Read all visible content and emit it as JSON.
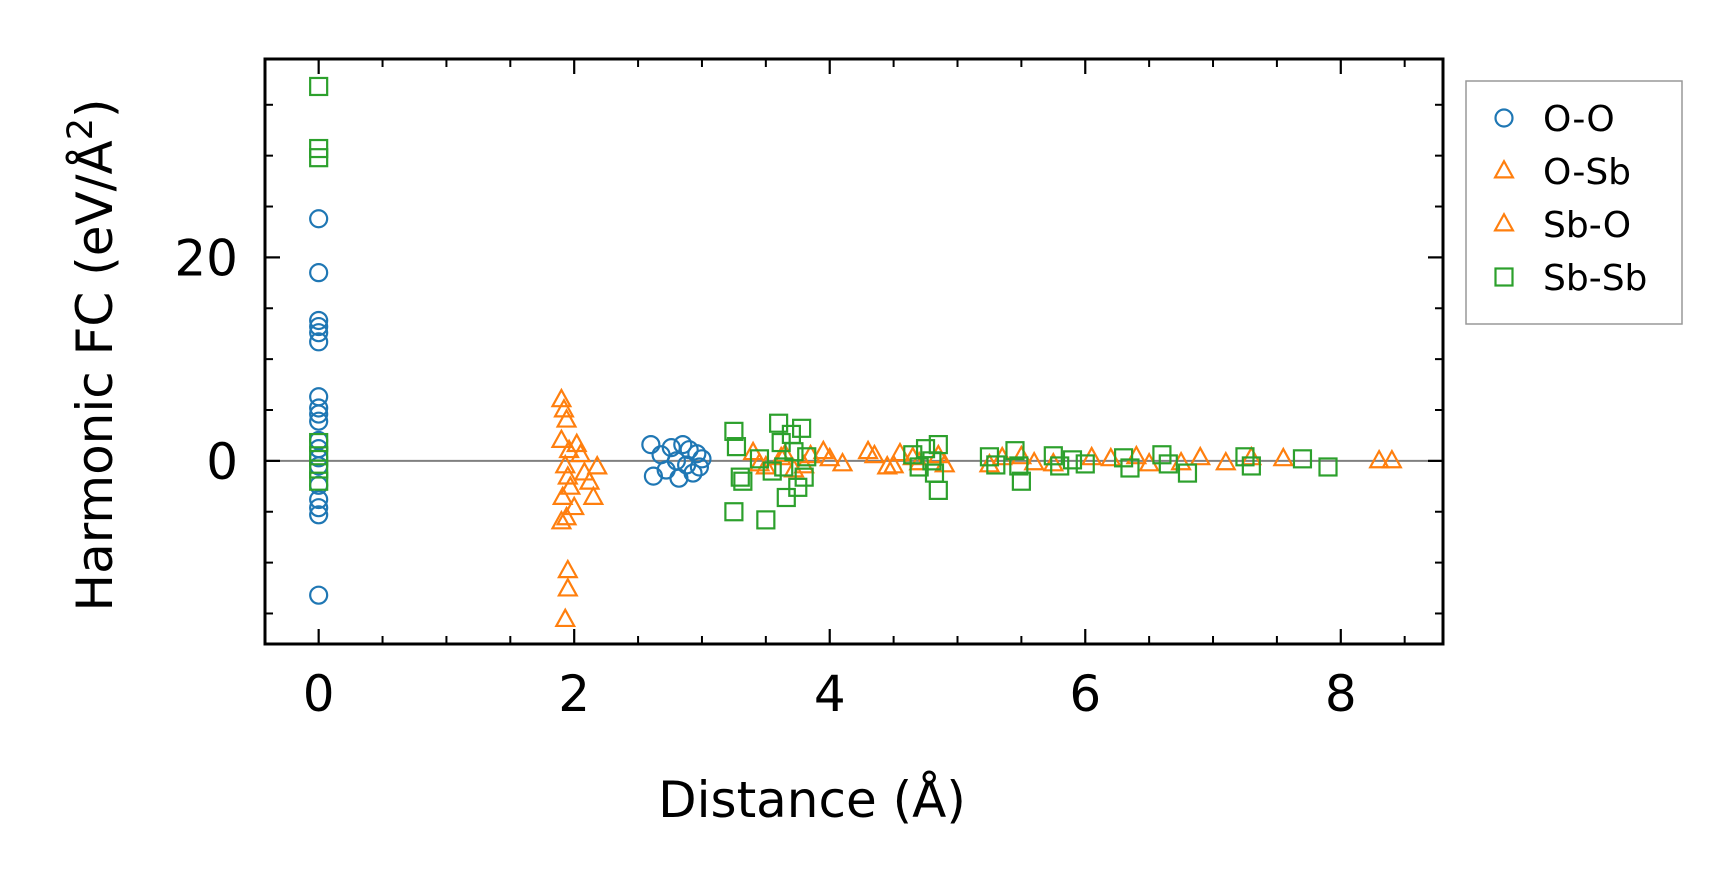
{
  "chart_data": {
    "type": "scatter",
    "title": "",
    "xlabel": "Distance (Å)",
    "ylabel": "Harmonic FC (eV/Å²)",
    "ylabel_main": "Harmonic FC (eV/Å",
    "ylabel_sup": "2",
    "ylabel_close": ")",
    "xlim": [
      -0.42,
      8.8
    ],
    "ylim": [
      -18,
      39.5
    ],
    "xticks": [
      0,
      2,
      4,
      6,
      8
    ],
    "xtick_labels": [
      "0",
      "2",
      "4",
      "6",
      "8"
    ],
    "yticks": [
      0,
      20
    ],
    "ytick_labels": [
      "0",
      "20"
    ],
    "zero_line": 0,
    "legend_position": "outside-right",
    "series": [
      {
        "name": "O-O",
        "marker": "circle",
        "filled": false,
        "color": "#1f77b4",
        "points": [
          [
            0.0,
            23.8
          ],
          [
            0.0,
            18.5
          ],
          [
            0.0,
            13.8
          ],
          [
            0.0,
            13.2
          ],
          [
            0.0,
            12.6
          ],
          [
            0.0,
            11.7
          ],
          [
            0.0,
            6.3
          ],
          [
            0.0,
            5.2
          ],
          [
            0.0,
            4.6
          ],
          [
            0.0,
            3.9
          ],
          [
            0.0,
            2.0
          ],
          [
            0.0,
            1.2
          ],
          [
            0.0,
            0.3
          ],
          [
            0.0,
            -0.5
          ],
          [
            0.0,
            -2.4
          ],
          [
            0.0,
            -3.8
          ],
          [
            0.0,
            -4.6
          ],
          [
            0.0,
            -5.3
          ],
          [
            0.0,
            -13.2
          ],
          [
            2.6,
            1.6
          ],
          [
            2.62,
            -1.5
          ],
          [
            2.68,
            0.6
          ],
          [
            2.72,
            -0.9
          ],
          [
            2.76,
            1.3
          ],
          [
            2.8,
            0.0
          ],
          [
            2.82,
            -1.7
          ],
          [
            2.85,
            1.6
          ],
          [
            2.88,
            -0.4
          ],
          [
            2.9,
            1.1
          ],
          [
            2.93,
            -1.2
          ],
          [
            2.96,
            0.7
          ],
          [
            2.98,
            -0.6
          ],
          [
            3.0,
            0.2
          ]
        ]
      },
      {
        "name": "O-Sb",
        "marker": "triangle",
        "filled": false,
        "color": "#ff7f0e",
        "points": [
          [
            1.9,
            6.0
          ],
          [
            1.92,
            5.0
          ],
          [
            1.94,
            4.0
          ],
          [
            1.9,
            2.0
          ],
          [
            1.96,
            1.0
          ],
          [
            1.93,
            -0.5
          ],
          [
            1.95,
            -1.6
          ],
          [
            1.97,
            -2.6
          ],
          [
            1.91,
            -3.6
          ],
          [
            2.0,
            -4.6
          ],
          [
            1.94,
            -5.6
          ],
          [
            1.9,
            -6.0
          ],
          [
            2.02,
            1.6
          ],
          [
            2.05,
            0.6
          ],
          [
            2.08,
            -1.2
          ],
          [
            2.12,
            -2.1
          ],
          [
            2.15,
            -3.6
          ],
          [
            2.18,
            -0.6
          ],
          [
            1.95,
            -10.8
          ],
          [
            1.95,
            -12.6
          ],
          [
            1.93,
            -15.6
          ],
          [
            3.4,
            0.8
          ],
          [
            3.5,
            -0.6
          ],
          [
            3.62,
            0.3
          ],
          [
            3.72,
            -0.9
          ],
          [
            3.85,
            0.5
          ],
          [
            3.95,
            0.9
          ],
          [
            4.1,
            -0.3
          ],
          [
            4.3,
            0.9
          ],
          [
            4.45,
            -0.6
          ],
          [
            4.55,
            0.7
          ],
          [
            4.7,
            -0.2
          ],
          [
            4.85,
            0.5
          ],
          [
            5.25,
            -0.4
          ],
          [
            5.5,
            0.4
          ],
          [
            5.75,
            -0.3
          ],
          [
            6.05,
            0.3
          ],
          [
            6.4,
            0.4
          ],
          [
            6.75,
            -0.2
          ]
        ]
      },
      {
        "name": "Sb-O",
        "marker": "triangle",
        "filled": false,
        "color": "#ff7f0e",
        "points": [
          [
            3.45,
            -0.3
          ],
          [
            3.65,
            0.6
          ],
          [
            3.8,
            -0.5
          ],
          [
            4.0,
            0.2
          ],
          [
            4.35,
            0.5
          ],
          [
            4.5,
            -0.5
          ],
          [
            4.65,
            0.3
          ],
          [
            4.9,
            -0.4
          ],
          [
            5.35,
            0.3
          ],
          [
            5.6,
            -0.2
          ],
          [
            6.2,
            0.2
          ],
          [
            6.5,
            -0.3
          ],
          [
            6.9,
            0.3
          ],
          [
            7.1,
            -0.2
          ],
          [
            7.3,
            0.3
          ],
          [
            7.55,
            0.2
          ],
          [
            8.3,
            0.0
          ],
          [
            8.4,
            0.0
          ]
        ]
      },
      {
        "name": "Sb-Sb",
        "marker": "square",
        "filled": false,
        "color": "#2ca02c",
        "points": [
          [
            0.0,
            36.8
          ],
          [
            0.0,
            30.7
          ],
          [
            0.0,
            29.8
          ],
          [
            0.0,
            1.8
          ],
          [
            0.0,
            0.5
          ],
          [
            0.0,
            -0.8
          ],
          [
            0.0,
            -2.0
          ],
          [
            3.25,
            2.9
          ],
          [
            3.27,
            1.4
          ],
          [
            3.3,
            -1.6
          ],
          [
            3.32,
            -2.0
          ],
          [
            3.25,
            -5.0
          ],
          [
            3.5,
            -5.8
          ],
          [
            3.45,
            0.2
          ],
          [
            3.55,
            -1.0
          ],
          [
            3.6,
            3.7
          ],
          [
            3.62,
            1.8
          ],
          [
            3.64,
            -0.6
          ],
          [
            3.66,
            -3.6
          ],
          [
            3.7,
            2.6
          ],
          [
            3.72,
            0.9
          ],
          [
            3.75,
            -2.6
          ],
          [
            3.78,
            3.2
          ],
          [
            3.8,
            -1.6
          ],
          [
            3.82,
            0.4
          ],
          [
            4.65,
            0.6
          ],
          [
            4.7,
            -0.6
          ],
          [
            4.75,
            1.2
          ],
          [
            4.8,
            0.0
          ],
          [
            4.82,
            -1.2
          ],
          [
            4.85,
            1.6
          ],
          [
            4.85,
            -2.9
          ],
          [
            5.25,
            0.4
          ],
          [
            5.3,
            -0.4
          ],
          [
            5.45,
            1.0
          ],
          [
            5.48,
            -0.5
          ],
          [
            5.5,
            -2.0
          ],
          [
            5.75,
            0.5
          ],
          [
            5.8,
            -0.5
          ],
          [
            5.9,
            0.1
          ],
          [
            6.0,
            -0.3
          ],
          [
            6.3,
            0.3
          ],
          [
            6.35,
            -0.7
          ],
          [
            6.6,
            0.6
          ],
          [
            6.65,
            -0.3
          ],
          [
            6.8,
            -1.2
          ],
          [
            7.25,
            0.4
          ],
          [
            7.3,
            -0.5
          ],
          [
            7.7,
            0.2
          ],
          [
            7.9,
            -0.6
          ]
        ]
      }
    ]
  }
}
